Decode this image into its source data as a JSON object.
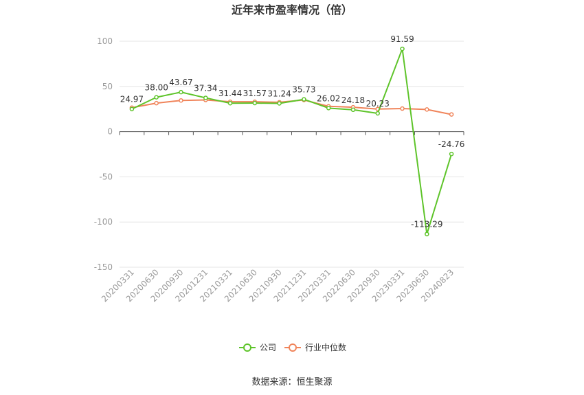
{
  "chart_data": {
    "type": "line",
    "title": "近年来市盈率情况（倍）",
    "source": "数据来源：恒生聚源",
    "categories": [
      "20200331",
      "20200630",
      "20200930",
      "20201231",
      "20210331",
      "20210630",
      "20210930",
      "20211231",
      "20220331",
      "20220630",
      "20220930",
      "20230331",
      "20230630",
      "20240823"
    ],
    "ylim": [
      -150,
      100
    ],
    "yticks": [
      100,
      50,
      0,
      -50,
      -100,
      -150
    ],
    "grid": true,
    "legend_position": "bottom",
    "series": [
      {
        "name": "公司",
        "color": "#5ec42a",
        "values": [
          24.97,
          38.0,
          43.67,
          37.34,
          31.44,
          31.57,
          31.24,
          35.73,
          26.02,
          24.18,
          20.23,
          91.59,
          -113.29,
          -24.76
        ],
        "labels": [
          "24.97",
          "38.00",
          "43.67",
          "37.34",
          "31.44",
          "31.57",
          "31.24",
          "35.73",
          "26.02",
          "24.18",
          "20.23",
          "91.59",
          "-113.29",
          "-24.76"
        ]
      },
      {
        "name": "行业中位数",
        "color": "#f0845a",
        "values": [
          26.5,
          31.5,
          34.5,
          35.0,
          33.0,
          33.0,
          32.5,
          35.0,
          28.0,
          27.0,
          25.0,
          25.5,
          24.5,
          19.0
        ]
      }
    ]
  }
}
